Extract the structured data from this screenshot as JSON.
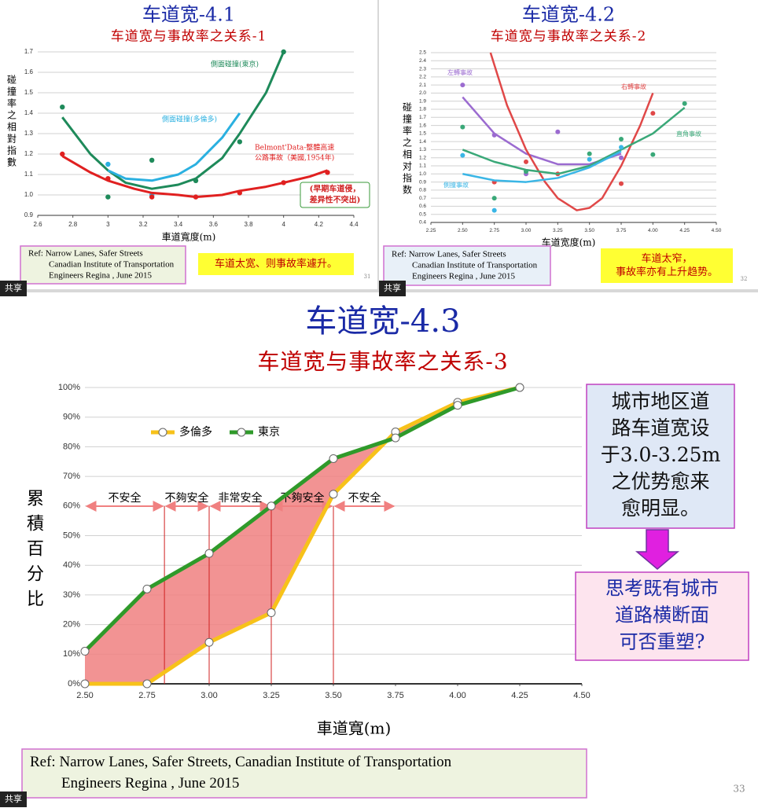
{
  "chart_data": [
    {
      "type": "line",
      "title": "车道宽-4.1",
      "subtitle": "车道宽与事故率之关系-1",
      "ylabel": "碰撞率之相對指數",
      "xlabel": "車道寬度(m)",
      "xlim": [
        2.6,
        4.4
      ],
      "xticks": [
        2.6,
        2.8,
        3,
        3.2,
        3.4,
        3.6,
        3.8,
        4,
        4.2,
        4.4
      ],
      "ylim": [
        0.9,
        1.7
      ],
      "yticks": [
        0.9,
        {
          "value": 1,
          "label": "1.0"
        },
        1.1,
        1.2,
        1.3,
        1.4,
        1.5,
        1.6,
        1.7
      ],
      "grid": true,
      "series": [
        {
          "name": [
            "側面碰撞(東京)"
          ],
          "color": "#1e8a5a",
          "x": [
            2.74,
            3.0,
            3.25,
            3.5,
            3.75,
            4.0
          ],
          "values": [
            1.43,
            0.99,
            1.17,
            1.07,
            1.26,
            1.7
          ],
          "curve_x": [
            2.74,
            2.9,
            3.0,
            3.1,
            3.25,
            3.4,
            3.5,
            3.65,
            3.75,
            3.9,
            4.0
          ],
          "curve_values": [
            1.38,
            1.2,
            1.12,
            1.06,
            1.03,
            1.05,
            1.08,
            1.18,
            1.3,
            1.5,
            1.7
          ]
        },
        {
          "name": [
            "側面碰撞(多倫多)"
          ],
          "color": "#2ab0e0",
          "x": [
            3.0,
            3.25
          ],
          "values": [
            1.15,
            1.0
          ],
          "curve_x": [
            3.0,
            3.1,
            3.25,
            3.4,
            3.5,
            3.65,
            3.75
          ],
          "curve_values": [
            1.12,
            1.08,
            1.07,
            1.1,
            1.15,
            1.28,
            1.4
          ]
        },
        {
          "name": [
            "Belmont'Data-整體高速",
            "公路事故（美國,1954年)"
          ],
          "color": "#e02020",
          "x": [
            2.74,
            3.0,
            3.25,
            3.5,
            3.75,
            4.0,
            4.25
          ],
          "values": [
            1.2,
            1.08,
            0.99,
            0.99,
            1.01,
            1.06,
            1.11
          ],
          "curve_x": [
            2.74,
            2.9,
            3.0,
            3.15,
            3.25,
            3.4,
            3.5,
            3.65,
            3.75,
            3.9,
            4.0,
            4.15,
            4.25
          ],
          "curve_values": [
            1.19,
            1.11,
            1.07,
            1.03,
            1.01,
            1.0,
            0.99,
            1.0,
            1.02,
            1.04,
            1.06,
            1.09,
            1.12
          ]
        }
      ],
      "annotation": [
        "(早期车道侵，",
        "差异性不突出)"
      ],
      "ref": [
        "Ref: Narrow Lanes, Safer Streets",
        "Canadian Institute of Transportation",
        "Engineers Regina , June 2015"
      ],
      "note": [
        "车道太宽、则事故率遽升。"
      ],
      "page": "31",
      "badge": "共享"
    },
    {
      "type": "line",
      "title": "车道宽-4.2",
      "subtitle": "车道宽与事故率之关系-2",
      "ylabel": "碰撞率之相对指数",
      "xlabel": "车道宽度(m)",
      "xlim": [
        2.25,
        4.5
      ],
      "xticks": [
        2.25,
        {
          "value": 2.5,
          "label": "2.50"
        },
        2.75,
        {
          "value": 3,
          "label": "3.00"
        },
        3.25,
        {
          "value": 3.5,
          "label": "3.50"
        },
        3.75,
        {
          "value": 4,
          "label": "4.00"
        },
        4.25,
        {
          "value": 4.5,
          "label": "4.50"
        }
      ],
      "ylim": [
        0.4,
        2.5
      ],
      "yticks": [
        0.4,
        0.5,
        0.6,
        0.7,
        0.8,
        0.9,
        {
          "value": 1,
          "label": "1.0"
        },
        1.1,
        1.2,
        1.3,
        1.4,
        1.5,
        1.6,
        1.7,
        1.8,
        1.9,
        {
          "value": 2,
          "label": "2.0"
        },
        2.1,
        2.2,
        2.3,
        2.4,
        2.5
      ],
      "grid": true,
      "series": [
        {
          "name": [
            "左轉事故"
          ],
          "color": "#9b6bd0",
          "x": [
            2.5,
            2.75,
            3.0,
            3.25,
            3.75
          ],
          "values": [
            2.1,
            1.48,
            1.0,
            1.52,
            1.2
          ],
          "curve_x": [
            2.5,
            2.75,
            3.0,
            3.25,
            3.5,
            3.75
          ],
          "curve_values": [
            1.95,
            1.5,
            1.25,
            1.12,
            1.12,
            1.25
          ]
        },
        {
          "name": [
            "右轉事故"
          ],
          "color": "#e04848",
          "x": [
            2.75,
            3.0,
            3.25,
            3.75,
            4.0
          ],
          "values": [
            0.9,
            1.15,
            1.0,
            0.88,
            1.75
          ],
          "curve_x": [
            2.72,
            2.85,
            3.0,
            3.15,
            3.25,
            3.4,
            3.5,
            3.6,
            3.75,
            3.9,
            4.0
          ],
          "curve_values": [
            2.5,
            1.85,
            1.3,
            0.9,
            0.7,
            0.55,
            0.58,
            0.7,
            1.1,
            1.6,
            2.0
          ]
        },
        {
          "name": [
            "直角事故"
          ],
          "color": "#3aa878",
          "x": [
            2.5,
            2.75,
            3.0,
            3.5,
            3.75,
            4.0,
            4.25
          ],
          "values": [
            1.58,
            0.7,
            1.03,
            1.25,
            1.43,
            1.24,
            1.87
          ],
          "curve_x": [
            2.5,
            2.75,
            3.0,
            3.25,
            3.5,
            3.75,
            4.0,
            4.25
          ],
          "curve_values": [
            1.3,
            1.15,
            1.05,
            1.0,
            1.1,
            1.3,
            1.5,
            1.82
          ]
        },
        {
          "name": [
            "側撞事故"
          ],
          "color": "#3ab6e6",
          "x": [
            2.5,
            2.75,
            3.5,
            3.75
          ],
          "values": [
            1.23,
            0.55,
            1.18,
            1.33
          ],
          "curve_x": [
            2.5,
            2.75,
            3.0,
            3.25,
            3.5,
            3.75
          ],
          "curve_values": [
            1.0,
            0.92,
            0.9,
            0.95,
            1.08,
            1.28
          ]
        }
      ],
      "ref": [
        "Ref: Narrow Lanes, Safer Streets",
        "Canadian Institute of Transportation",
        "Engineers Regina , June 2015"
      ],
      "note": [
        "车道太窄，",
        "事故率亦有上升趋势。"
      ],
      "page": "32",
      "badge": "共享"
    },
    {
      "type": "line",
      "title": "车道宽-4.3",
      "subtitle": "车道宽与事故率之关系-3",
      "ylabel": "累積百分比",
      "xlabel": "車道寬(m)",
      "xlim": [
        2.5,
        4.5
      ],
      "xticks": [
        {
          "value": 2.5,
          "label": "2.50"
        },
        2.75,
        {
          "value": 3,
          "label": "3.00"
        },
        3.25,
        {
          "value": 3.5,
          "label": "3.50"
        },
        3.75,
        {
          "value": 4,
          "label": "4.00"
        },
        4.25,
        {
          "value": 4.5,
          "label": "4.50"
        }
      ],
      "ylim": [
        0,
        100
      ],
      "yticks": [
        {
          "value": 0,
          "label": "0%"
        },
        {
          "value": 10,
          "label": "10%"
        },
        {
          "value": 20,
          "label": "20%"
        },
        {
          "value": 30,
          "label": "30%"
        },
        {
          "value": 40,
          "label": "40%"
        },
        {
          "value": 50,
          "label": "50%"
        },
        {
          "value": 60,
          "label": "60%"
        },
        {
          "value": 70,
          "label": "70%"
        },
        {
          "value": 80,
          "label": "80%"
        },
        {
          "value": 90,
          "label": "90%"
        },
        {
          "value": 100,
          "label": "100%"
        }
      ],
      "grid": true,
      "fill_between": "#f08080",
      "series": [
        {
          "name": "多倫多",
          "color": "#f7c21a",
          "x": [
            2.5,
            2.75,
            3.0,
            3.25,
            3.5,
            3.75,
            4.0,
            4.25
          ],
          "values": [
            0,
            0,
            14,
            24,
            64,
            85,
            95,
            100
          ]
        },
        {
          "name": "東京",
          "color": "#2f9a2a",
          "x": [
            2.5,
            2.75,
            3.0,
            3.25,
            3.5,
            3.75,
            4.0,
            4.25
          ],
          "values": [
            11,
            32,
            44,
            60,
            76,
            83,
            94,
            100
          ]
        }
      ],
      "zones": [
        {
          "from": 2.5,
          "to": 2.82,
          "label": "不安全"
        },
        {
          "from": 2.82,
          "to": 3.0,
          "label": "不夠安全"
        },
        {
          "from": 3.0,
          "to": 3.25,
          "label": "非常安全"
        },
        {
          "from": 3.25,
          "to": 3.5,
          "label": "不夠安全"
        },
        {
          "from": 3.5,
          "to": 3.75,
          "label": "不安全"
        }
      ],
      "note": [
        "城市地区道",
        "路车道宽设",
        "于3.0-3.25m",
        "之优势愈来",
        "愈明显。"
      ],
      "question": [
        "思考既有城市",
        "道路横断面",
        "可否重塑?"
      ],
      "ref": [
        "Ref: Narrow Lanes, Safer Streets,  Canadian Institute of Transportation",
        "Engineers Regina , June 2015"
      ],
      "page": "33",
      "badge": "共享"
    }
  ]
}
